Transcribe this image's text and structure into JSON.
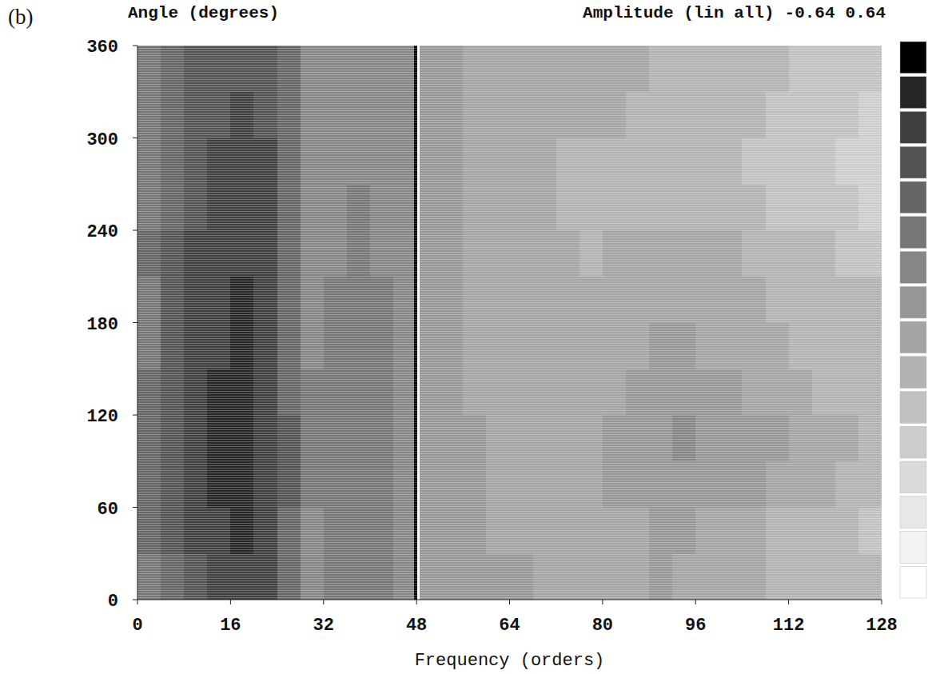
{
  "chart_data": {
    "type": "heatmap",
    "panel": "(b)",
    "ylabel": "Angle (degrees)",
    "xlabel": "Frequency (orders)",
    "colorbar_label": "Amplitude (lin all)",
    "colorbar_range": [
      -0.64,
      0.64
    ],
    "xlim": [
      0,
      128
    ],
    "ylim": [
      0,
      360
    ],
    "xticks": [
      0,
      16,
      32,
      48,
      64,
      80,
      96,
      112,
      128
    ],
    "yticks": [
      0,
      60,
      120,
      180,
      240,
      300,
      360
    ],
    "x_bins": [
      0,
      4,
      8,
      12,
      16,
      20,
      24,
      28,
      32,
      36,
      40,
      44,
      47.6,
      48.1,
      48.6,
      52,
      56,
      60,
      64,
      68,
      72,
      76,
      80,
      84,
      88,
      92,
      96,
      100,
      104,
      108,
      112,
      116,
      120,
      124,
      128
    ],
    "y_bins": [
      0,
      30,
      60,
      90,
      120,
      150,
      180,
      210,
      240,
      270,
      300,
      330,
      360
    ],
    "cells": [
      [
        0.22,
        0.3,
        0.36,
        0.4,
        0.46,
        0.4,
        0.28,
        0.14,
        0.16,
        0.18,
        0.16,
        0.1,
        0.64,
        -0.64,
        0.05,
        0.03,
        0.02,
        0.0,
        0.0,
        -0.02,
        -0.03,
        -0.04,
        -0.06,
        -0.08,
        0.0,
        -0.02,
        -0.04,
        -0.06,
        -0.08,
        -0.1,
        -0.12,
        -0.12,
        -0.14,
        -0.16
      ],
      [
        0.24,
        0.32,
        0.4,
        0.44,
        0.48,
        0.42,
        0.3,
        0.15,
        0.17,
        0.19,
        0.17,
        0.11,
        0.64,
        -0.64,
        0.04,
        0.02,
        0.0,
        -0.02,
        -0.03,
        -0.04,
        -0.06,
        -0.08,
        -0.06,
        -0.02,
        0.02,
        0.0,
        -0.03,
        -0.05,
        -0.08,
        -0.1,
        -0.11,
        -0.13,
        -0.15,
        -0.17
      ],
      [
        0.26,
        0.36,
        0.44,
        0.48,
        0.52,
        0.46,
        0.32,
        0.16,
        0.18,
        0.2,
        0.18,
        0.12,
        0.64,
        -0.64,
        0.04,
        0.02,
        0.0,
        -0.02,
        -0.03,
        -0.04,
        -0.05,
        -0.04,
        0.0,
        0.04,
        0.06,
        0.06,
        0.04,
        0.02,
        0.0,
        -0.03,
        -0.06,
        -0.08,
        -0.1,
        -0.12
      ],
      [
        0.26,
        0.38,
        0.46,
        0.5,
        0.52,
        0.46,
        0.32,
        0.17,
        0.19,
        0.2,
        0.18,
        0.12,
        0.64,
        -0.64,
        0.04,
        0.02,
        0.0,
        -0.02,
        -0.02,
        -0.03,
        -0.04,
        -0.02,
        0.02,
        0.05,
        0.07,
        0.08,
        0.06,
        0.04,
        0.02,
        0.0,
        -0.04,
        -0.06,
        -0.08,
        -0.1
      ],
      [
        0.24,
        0.36,
        0.44,
        0.48,
        0.5,
        0.44,
        0.3,
        0.16,
        0.18,
        0.2,
        0.17,
        0.12,
        0.64,
        -0.64,
        0.03,
        0.01,
        -0.01,
        -0.03,
        -0.04,
        -0.05,
        -0.05,
        -0.04,
        -0.02,
        0.0,
        0.02,
        0.03,
        0.02,
        0.0,
        -0.02,
        -0.05,
        -0.07,
        -0.09,
        -0.1,
        -0.12
      ],
      [
        0.22,
        0.34,
        0.42,
        0.46,
        0.48,
        0.42,
        0.28,
        0.15,
        0.17,
        0.19,
        0.16,
        0.11,
        0.64,
        -0.64,
        0.03,
        0.01,
        -0.01,
        -0.03,
        -0.04,
        -0.06,
        -0.07,
        -0.06,
        -0.04,
        -0.02,
        0.0,
        0.0,
        -0.02,
        -0.04,
        -0.06,
        -0.08,
        -0.1,
        -0.12,
        -0.13,
        -0.14
      ],
      [
        0.22,
        0.32,
        0.4,
        0.44,
        0.48,
        0.42,
        0.28,
        0.14,
        0.16,
        0.18,
        0.16,
        0.1,
        0.64,
        -0.64,
        0.03,
        0.0,
        -0.02,
        -0.04,
        -0.05,
        -0.06,
        -0.08,
        -0.08,
        -0.06,
        -0.05,
        -0.04,
        -0.04,
        -0.05,
        -0.06,
        -0.08,
        -0.1,
        -0.12,
        -0.14,
        -0.15,
        -0.16
      ],
      [
        0.24,
        0.34,
        0.42,
        0.44,
        0.46,
        0.42,
        0.28,
        0.13,
        0.15,
        0.17,
        0.15,
        0.1,
        0.64,
        -0.64,
        0.02,
        0.0,
        -0.02,
        -0.04,
        -0.06,
        -0.07,
        -0.08,
        -0.09,
        -0.08,
        -0.07,
        -0.06,
        -0.06,
        -0.07,
        -0.08,
        -0.1,
        -0.12,
        -0.14,
        -0.16,
        -0.18,
        -0.2
      ],
      [
        0.22,
        0.3,
        0.38,
        0.42,
        0.46,
        0.44,
        0.3,
        0.13,
        0.14,
        0.16,
        0.14,
        0.09,
        0.64,
        -0.64,
        0.02,
        0.0,
        -0.03,
        -0.05,
        -0.06,
        -0.08,
        -0.09,
        -0.1,
        -0.1,
        -0.1,
        -0.1,
        -0.11,
        -0.12,
        -0.14,
        -0.16,
        -0.18,
        -0.2,
        -0.22,
        -0.24,
        -0.26
      ],
      [
        0.2,
        0.28,
        0.36,
        0.4,
        0.44,
        0.42,
        0.28,
        0.12,
        0.13,
        0.15,
        0.13,
        0.08,
        0.64,
        -0.64,
        0.02,
        0.0,
        -0.03,
        -0.05,
        -0.06,
        -0.08,
        -0.09,
        -0.1,
        -0.1,
        -0.11,
        -0.12,
        -0.13,
        -0.14,
        -0.16,
        -0.18,
        -0.2,
        -0.22,
        -0.24,
        -0.26,
        -0.28
      ],
      [
        0.2,
        0.26,
        0.32,
        0.36,
        0.4,
        0.36,
        0.24,
        0.11,
        0.12,
        0.14,
        0.12,
        0.08,
        0.64,
        -0.64,
        0.02,
        0.0,
        -0.02,
        -0.04,
        -0.05,
        -0.06,
        -0.07,
        -0.08,
        -0.08,
        -0.09,
        -0.1,
        -0.11,
        -0.12,
        -0.14,
        -0.16,
        -0.18,
        -0.2,
        -0.22,
        -0.24,
        -0.25
      ],
      [
        0.2,
        0.26,
        0.32,
        0.34,
        0.38,
        0.34,
        0.24,
        0.1,
        0.12,
        0.14,
        0.12,
        0.08,
        0.64,
        -0.64,
        0.03,
        0.01,
        -0.01,
        -0.03,
        -0.04,
        -0.05,
        -0.06,
        -0.07,
        -0.07,
        -0.08,
        -0.09,
        -0.1,
        -0.11,
        -0.12,
        -0.14,
        -0.16,
        -0.18,
        -0.2,
        -0.22,
        -0.24
      ]
    ]
  }
}
